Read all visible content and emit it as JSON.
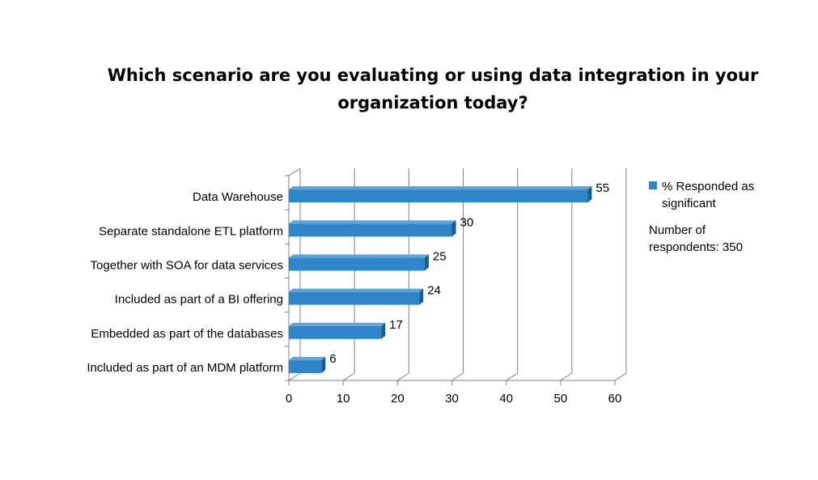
{
  "chart_data": {
    "type": "bar",
    "orientation": "horizontal",
    "title": [
      "Which scenario are you evaluating or using data integration in your",
      "organization today?"
    ],
    "categories": [
      "Data Warehouse",
      "Separate standalone ETL platform",
      "Together with SOA for data services",
      "Included as part of a BI offering",
      "Embedded as part of the databases",
      "Included as part of an MDM platform"
    ],
    "series": [
      {
        "name": "% Responded as significant",
        "values": [
          55,
          30,
          25,
          24,
          17,
          6
        ],
        "color": "#2E86C8"
      }
    ],
    "xlim": [
      0,
      60
    ],
    "xticks": [
      0,
      10,
      20,
      30,
      40,
      50,
      60
    ],
    "grid": true,
    "legend_position": "right",
    "note": [
      "Number of",
      "respondents: 350"
    ]
  }
}
